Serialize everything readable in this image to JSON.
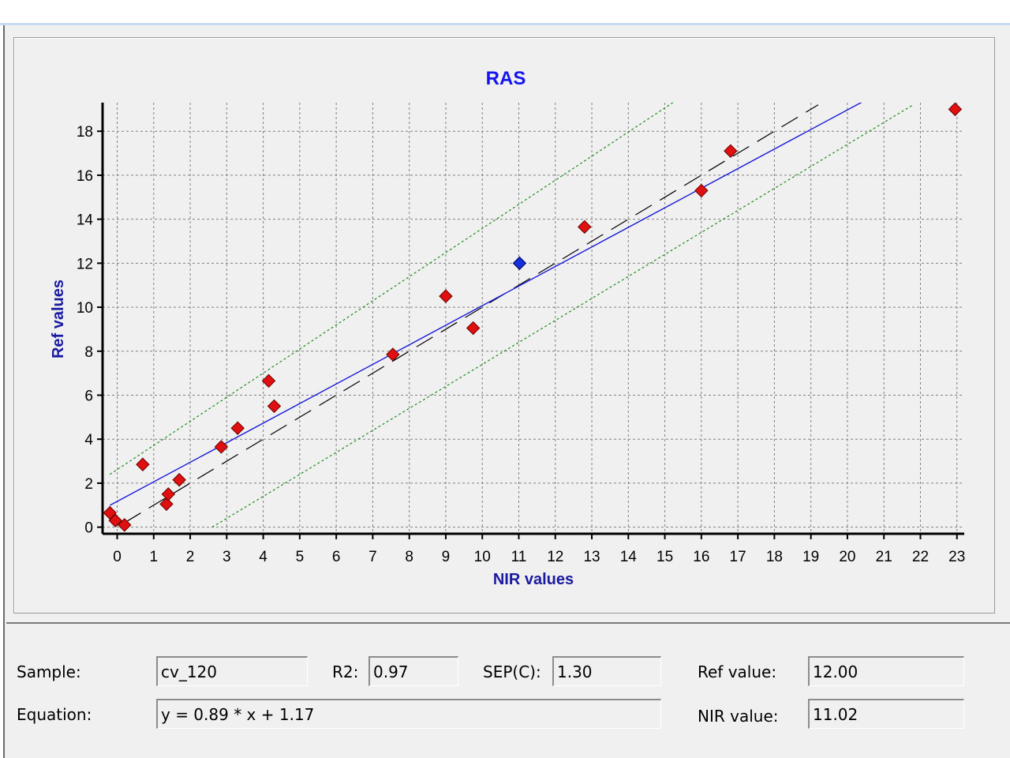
{
  "chart_data": {
    "type": "scatter",
    "title": "RAS",
    "xlabel": "NIR values",
    "ylabel": "Ref values",
    "xlim": [
      -0.4,
      23.2
    ],
    "ylim": [
      -0.3,
      19.3
    ],
    "xticks": [
      0,
      1,
      2,
      3,
      4,
      5,
      6,
      7,
      8,
      9,
      10,
      11,
      12,
      13,
      14,
      15,
      16,
      17,
      18,
      19,
      20,
      21,
      22,
      23
    ],
    "yticks": [
      0,
      2,
      4,
      6,
      8,
      10,
      12,
      14,
      16,
      18
    ],
    "grid": true,
    "points": [
      {
        "x": -0.2,
        "y": 0.65
      },
      {
        "x": -0.05,
        "y": 0.3
      },
      {
        "x": 0.2,
        "y": 0.1
      },
      {
        "x": 0.7,
        "y": 2.85
      },
      {
        "x": 1.35,
        "y": 1.05
      },
      {
        "x": 1.4,
        "y": 1.5
      },
      {
        "x": 1.7,
        "y": 2.15
      },
      {
        "x": 2.85,
        "y": 3.65
      },
      {
        "x": 3.3,
        "y": 4.5
      },
      {
        "x": 4.15,
        "y": 6.65
      },
      {
        "x": 4.3,
        "y": 5.5
      },
      {
        "x": 7.55,
        "y": 7.85
      },
      {
        "x": 9.0,
        "y": 10.5
      },
      {
        "x": 9.75,
        "y": 9.05
      },
      {
        "x": 12.8,
        "y": 13.65
      },
      {
        "x": 16.0,
        "y": 15.3
      },
      {
        "x": 16.8,
        "y": 17.1
      },
      {
        "x": 22.95,
        "y": 19.0
      }
    ],
    "selected_point": {
      "x": 11.02,
      "y": 12.0
    },
    "regression_line": {
      "slope": 0.89,
      "intercept": 1.17,
      "x_range": [
        -0.2,
        20.45
      ]
    },
    "ideal_line": {
      "slope": 1.0,
      "intercept": 0.0,
      "x_range": [
        0.2,
        19.2
      ]
    },
    "confidence_band_offset": 2.6,
    "colors": {
      "title": "#1414f0",
      "axis_label": "#1a1aa0",
      "point": "#e01010",
      "selected_point": "#1530d8",
      "regression_line": "#1a1ad8",
      "ideal_line": "#000000",
      "band": "#1e8c1e",
      "grid": "#808080"
    }
  },
  "fields": {
    "sample_label": "Sample:",
    "sample_value": "cv_120",
    "r2_label": "R2:",
    "r2_value": "0.97",
    "sep_label": "SEP(C):",
    "sep_value": "1.30",
    "ref_label": "Ref value:",
    "ref_value": "12.00",
    "equation_label": "Equation:",
    "equation_value": "y = 0.89 * x + 1.17",
    "nir_label": "NIR value:",
    "nir_value": "11.02"
  }
}
